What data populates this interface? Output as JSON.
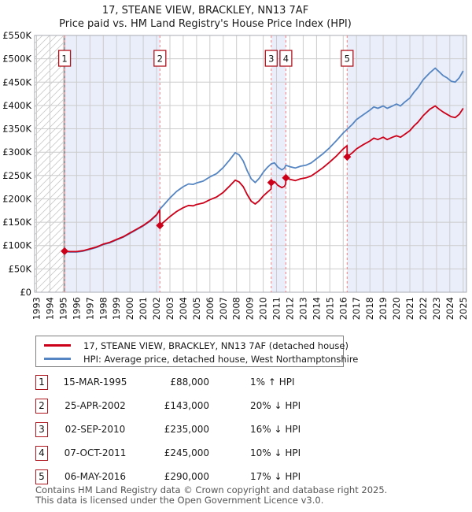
{
  "header": {
    "title": "17, STEANE VIEW, BRACKLEY, NN13 7AF",
    "subtitle": "Price paid vs. HM Land Registry's House Price Index (HPI)"
  },
  "legend": {
    "items": [
      {
        "label": "17, STEANE VIEW, BRACKLEY, NN13 7AF (detached house)",
        "color": "#cc0018"
      },
      {
        "label": "HPI: Average price, detached house, West Northamptonshire",
        "color": "#5585c2"
      }
    ]
  },
  "footer": {
    "line1": "Contains HM Land Registry data © Crown copyright and database right 2025.",
    "line2": "This data is licensed under the Open Government Licence v3.0."
  },
  "chart_data": {
    "type": "line",
    "title": "17, STEANE VIEW, BRACKLEY, NN13 7AF",
    "subtitle": "Price paid vs. HM Land Registry's House Price Index (HPI)",
    "xlim": [
      1992.85,
      2025.25
    ],
    "ylim": [
      0,
      550
    ],
    "x_ticks": [
      1993,
      1994,
      1995,
      1996,
      1997,
      1998,
      1999,
      2000,
      2001,
      2002,
      2003,
      2004,
      2005,
      2006,
      2007,
      2008,
      2009,
      2010,
      2011,
      2012,
      2013,
      2014,
      2015,
      2016,
      2017,
      2018,
      2019,
      2020,
      2021,
      2022,
      2023,
      2024,
      2025
    ],
    "y_ticks": [
      {
        "v": 0,
        "label": "£0"
      },
      {
        "v": 50,
        "label": "£50K"
      },
      {
        "v": 100,
        "label": "£100K"
      },
      {
        "v": 150,
        "label": "£150K"
      },
      {
        "v": 200,
        "label": "£200K"
      },
      {
        "v": 250,
        "label": "£250K"
      },
      {
        "v": 300,
        "label": "£300K"
      },
      {
        "v": 350,
        "label": "£350K"
      },
      {
        "v": 400,
        "label": "£400K"
      },
      {
        "v": 450,
        "label": "£450K"
      },
      {
        "v": 500,
        "label": "£500K"
      },
      {
        "v": 550,
        "label": "£550K"
      }
    ],
    "hatch_end": 1995.1,
    "ownership_periods": [
      [
        1995.1,
        2002.25
      ],
      [
        2010.6,
        2011.7
      ],
      [
        2016.3,
        2025.25
      ]
    ],
    "colors": {
      "red": "#cc0018",
      "blue": "#5585c2",
      "band": "#e9eefa",
      "dash": "#f38080",
      "grid": "#cccccc",
      "hatch": "#c9c9c9",
      "border": "#a7abb2",
      "badge_border": "#b0131c",
      "start_line": "#666666"
    },
    "series": [
      {
        "name": "HPI: Average price, detached house, West Northamptonshire",
        "color": "#5585c2",
        "unit": "GBP thousands",
        "points": [
          [
            1995.1,
            87
          ],
          [
            1995.5,
            86
          ],
          [
            1996.0,
            86
          ],
          [
            1996.5,
            88
          ],
          [
            1997.0,
            92
          ],
          [
            1997.5,
            96
          ],
          [
            1998.0,
            102
          ],
          [
            1998.5,
            106
          ],
          [
            1999.0,
            112
          ],
          [
            1999.5,
            118
          ],
          [
            2000.0,
            126
          ],
          [
            2000.5,
            134
          ],
          [
            2001.0,
            142
          ],
          [
            2001.5,
            152
          ],
          [
            2002.0,
            165
          ],
          [
            2002.25,
            178
          ],
          [
            2002.6,
            189
          ],
          [
            2003.0,
            202
          ],
          [
            2003.5,
            216
          ],
          [
            2004.0,
            226
          ],
          [
            2004.4,
            232
          ],
          [
            2004.75,
            231
          ],
          [
            2005.0,
            234
          ],
          [
            2005.5,
            238
          ],
          [
            2006.0,
            247
          ],
          [
            2006.5,
            254
          ],
          [
            2007.0,
            267
          ],
          [
            2007.5,
            284
          ],
          [
            2007.9,
            299
          ],
          [
            2008.2,
            294
          ],
          [
            2008.5,
            281
          ],
          [
            2008.8,
            260
          ],
          [
            2009.1,
            243
          ],
          [
            2009.4,
            235
          ],
          [
            2009.7,
            244
          ],
          [
            2010.0,
            257
          ],
          [
            2010.3,
            267
          ],
          [
            2010.6,
            275
          ],
          [
            2010.85,
            277
          ],
          [
            2011.1,
            268
          ],
          [
            2011.4,
            262
          ],
          [
            2011.6,
            266
          ],
          [
            2011.7,
            272
          ],
          [
            2012.0,
            269
          ],
          [
            2012.4,
            266
          ],
          [
            2012.8,
            270
          ],
          [
            2013.2,
            272
          ],
          [
            2013.6,
            277
          ],
          [
            2014.0,
            286
          ],
          [
            2014.5,
            297
          ],
          [
            2015.0,
            310
          ],
          [
            2015.5,
            325
          ],
          [
            2016.0,
            341
          ],
          [
            2016.3,
            349
          ],
          [
            2016.7,
            360
          ],
          [
            2017.0,
            370
          ],
          [
            2017.5,
            380
          ],
          [
            2018.0,
            390
          ],
          [
            2018.3,
            397
          ],
          [
            2018.6,
            394
          ],
          [
            2019.0,
            399
          ],
          [
            2019.3,
            394
          ],
          [
            2019.7,
            399
          ],
          [
            2020.0,
            403
          ],
          [
            2020.3,
            399
          ],
          [
            2020.6,
            407
          ],
          [
            2021.0,
            416
          ],
          [
            2021.3,
            428
          ],
          [
            2021.6,
            438
          ],
          [
            2022.0,
            455
          ],
          [
            2022.5,
            470
          ],
          [
            2022.9,
            480
          ],
          [
            2023.2,
            472
          ],
          [
            2023.5,
            464
          ],
          [
            2023.8,
            459
          ],
          [
            2024.1,
            452
          ],
          [
            2024.4,
            450
          ],
          [
            2024.7,
            459
          ],
          [
            2025.0,
            474
          ]
        ]
      },
      {
        "name": "17, STEANE VIEW, BRACKLEY, NN13 7AF (detached house)",
        "color": "#cc0018",
        "unit": "GBP thousands",
        "points": [
          [
            1995.1,
            88
          ],
          [
            1995.5,
            87
          ],
          [
            1996.0,
            87
          ],
          [
            1996.5,
            89
          ],
          [
            1997.0,
            93
          ],
          [
            1997.5,
            97
          ],
          [
            1998.0,
            103
          ],
          [
            1998.5,
            107
          ],
          [
            1999.0,
            113
          ],
          [
            1999.5,
            119
          ],
          [
            2000.0,
            127
          ],
          [
            2000.5,
            135
          ],
          [
            2001.0,
            143
          ],
          [
            2001.5,
            153
          ],
          [
            2002.0,
            166
          ],
          [
            2002.24,
            176
          ],
          [
            2002.25,
            143
          ],
          [
            2002.6,
            152
          ],
          [
            2003.0,
            162
          ],
          [
            2003.5,
            173
          ],
          [
            2004.0,
            181
          ],
          [
            2004.4,
            186
          ],
          [
            2004.75,
            185
          ],
          [
            2005.0,
            188
          ],
          [
            2005.5,
            191
          ],
          [
            2006.0,
            198
          ],
          [
            2006.5,
            204
          ],
          [
            2007.0,
            214
          ],
          [
            2007.5,
            228
          ],
          [
            2007.9,
            240
          ],
          [
            2008.2,
            236
          ],
          [
            2008.5,
            226
          ],
          [
            2008.8,
            209
          ],
          [
            2009.1,
            195
          ],
          [
            2009.4,
            189
          ],
          [
            2009.7,
            196
          ],
          [
            2010.0,
            206
          ],
          [
            2010.3,
            214
          ],
          [
            2010.59,
            221
          ],
          [
            2010.6,
            235
          ],
          [
            2010.85,
            237
          ],
          [
            2011.1,
            229
          ],
          [
            2011.4,
            224
          ],
          [
            2011.6,
            227
          ],
          [
            2011.69,
            232
          ],
          [
            2011.7,
            245
          ],
          [
            2012.0,
            242
          ],
          [
            2012.4,
            239
          ],
          [
            2012.8,
            243
          ],
          [
            2013.2,
            245
          ],
          [
            2013.6,
            249
          ],
          [
            2014.0,
            257
          ],
          [
            2014.5,
            267
          ],
          [
            2015.0,
            279
          ],
          [
            2015.5,
            292
          ],
          [
            2016.0,
            307
          ],
          [
            2016.29,
            314
          ],
          [
            2016.3,
            290
          ],
          [
            2016.7,
            299
          ],
          [
            2017.0,
            307
          ],
          [
            2017.5,
            316
          ],
          [
            2018.0,
            324
          ],
          [
            2018.3,
            330
          ],
          [
            2018.6,
            327
          ],
          [
            2019.0,
            332
          ],
          [
            2019.3,
            327
          ],
          [
            2019.7,
            332
          ],
          [
            2020.0,
            335
          ],
          [
            2020.3,
            332
          ],
          [
            2020.6,
            338
          ],
          [
            2021.0,
            346
          ],
          [
            2021.3,
            356
          ],
          [
            2021.6,
            364
          ],
          [
            2022.0,
            378
          ],
          [
            2022.5,
            392
          ],
          [
            2022.9,
            399
          ],
          [
            2023.2,
            392
          ],
          [
            2023.5,
            386
          ],
          [
            2023.8,
            381
          ],
          [
            2024.1,
            376
          ],
          [
            2024.4,
            374
          ],
          [
            2024.7,
            381
          ],
          [
            2025.0,
            394
          ]
        ]
      }
    ],
    "sales": [
      {
        "n": "1",
        "x": 1995.1,
        "price_k": 88,
        "date": "15-MAR-1995",
        "price": "£88,000",
        "hpi": "1% ↑ HPI"
      },
      {
        "n": "2",
        "x": 2002.25,
        "price_k": 143,
        "date": "25-APR-2002",
        "price": "£143,000",
        "hpi": "20% ↓ HPI"
      },
      {
        "n": "3",
        "x": 2010.6,
        "price_k": 235,
        "date": "02-SEP-2010",
        "price": "£235,000",
        "hpi": "16% ↓ HPI"
      },
      {
        "n": "4",
        "x": 2011.7,
        "price_k": 245,
        "date": "07-OCT-2011",
        "price": "£245,000",
        "hpi": "10% ↓ HPI"
      },
      {
        "n": "5",
        "x": 2016.3,
        "price_k": 290,
        "date": "06-MAY-2016",
        "price": "£290,000",
        "hpi": "17% ↓ HPI"
      }
    ]
  }
}
